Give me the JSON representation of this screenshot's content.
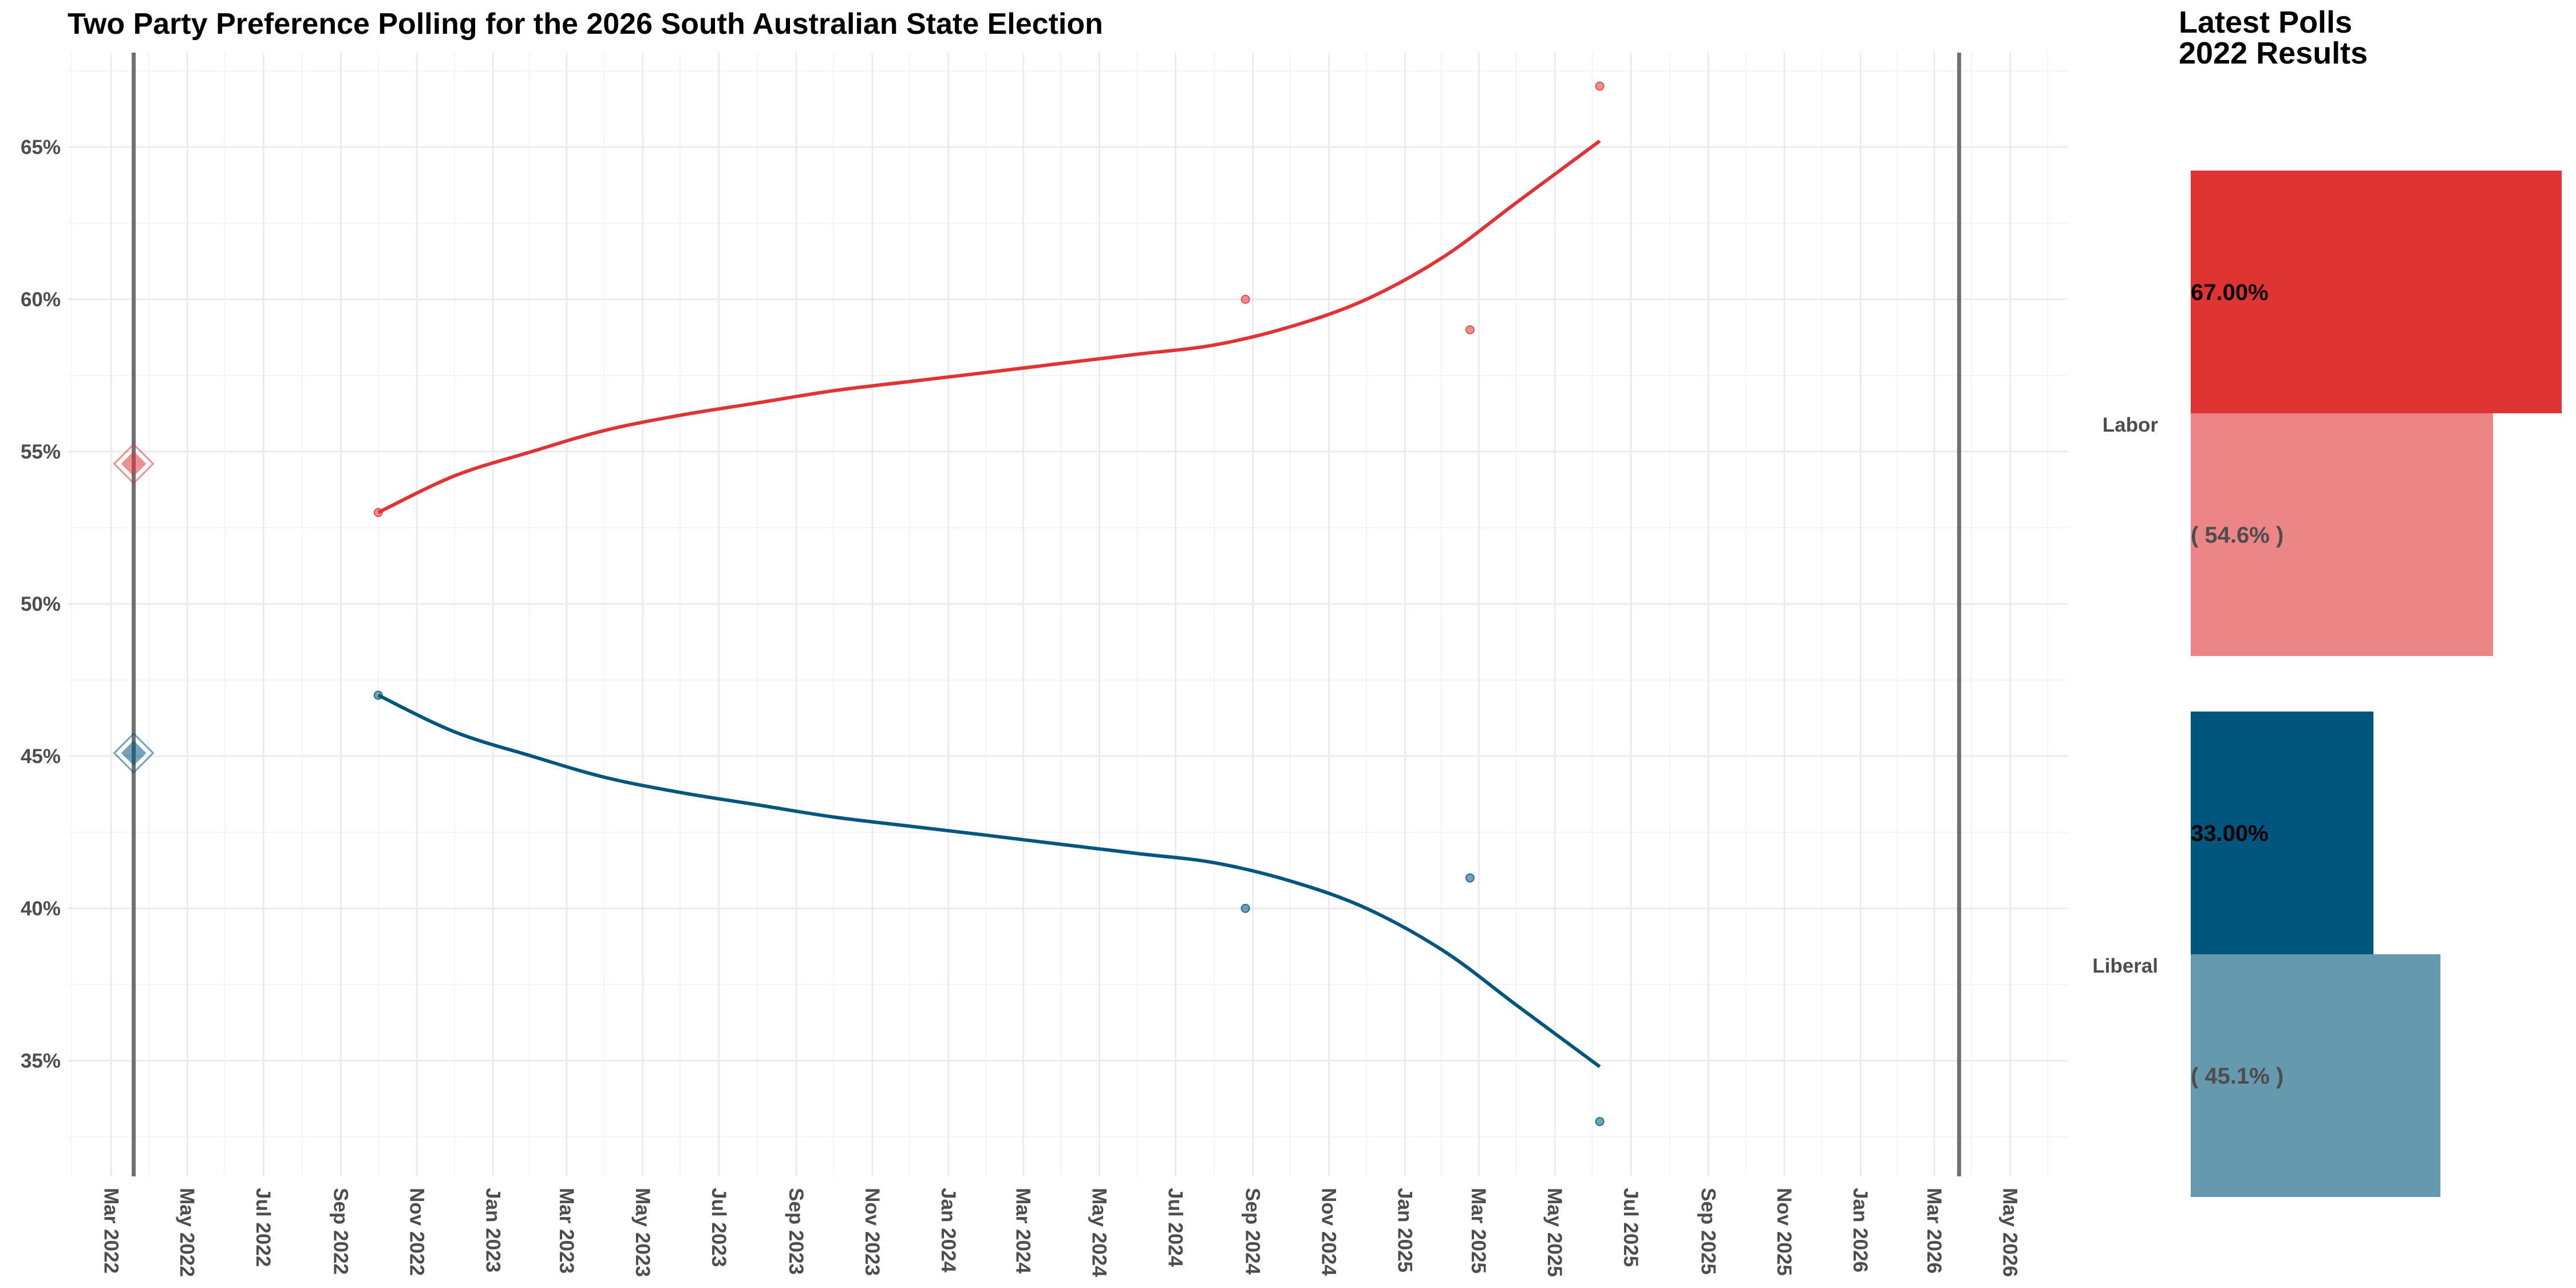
{
  "title": "Two Party Preference Polling for the 2026 South Australian State Election",
  "side_panel": {
    "title_line1": "Latest Polls",
    "title_line2": "2022 Results"
  },
  "colors": {
    "labor": "#E03434",
    "labor_light": "#EC8585",
    "liberal": "#00557F",
    "liberal_light": "#6699B0",
    "grid_major": "#EBEBEB",
    "grid_minor": "#F4F4F4",
    "vline": "#707070"
  },
  "chart_data": [
    {
      "type": "line",
      "title": "Two Party Preference Polling for the 2026 South Australian State Election",
      "xlabel": "",
      "ylabel": "",
      "x_axis_type": "date",
      "xlim": [
        "2022-01-25",
        "2026-06-16"
      ],
      "ylim": [
        31.2,
        68.1
      ],
      "y_ticks": [
        35,
        40,
        45,
        50,
        55,
        60,
        65
      ],
      "y_tick_labels": [
        "35%",
        "40%",
        "45%",
        "50%",
        "55%",
        "60%",
        "65%"
      ],
      "x_tick_labels": [
        "Mar 2022",
        "May 2022",
        "Jul 2022",
        "Sep 2022",
        "Nov 2022",
        "Jan 2023",
        "Mar 2023",
        "May 2023",
        "Jul 2023",
        "Sep 2023",
        "Nov 2023",
        "Jan 2024",
        "Mar 2024",
        "May 2024",
        "Jul 2024",
        "Sep 2024",
        "Nov 2024",
        "Jan 2025",
        "Mar 2025",
        "May 2025",
        "Jul 2025",
        "Sep 2025",
        "Nov 2025",
        "Jan 2026",
        "Mar 2026",
        "May 2026"
      ],
      "x_ticks": [
        "2022-03-01",
        "2022-05-01",
        "2022-07-01",
        "2022-09-01",
        "2022-11-01",
        "2023-01-01",
        "2023-03-01",
        "2023-05-01",
        "2023-07-01",
        "2023-09-01",
        "2023-11-01",
        "2024-01-01",
        "2024-03-01",
        "2024-05-01",
        "2024-07-01",
        "2024-09-01",
        "2024-11-01",
        "2025-01-01",
        "2025-03-01",
        "2025-05-01",
        "2025-07-01",
        "2025-09-01",
        "2025-11-01",
        "2026-01-01",
        "2026-03-01",
        "2026-05-01"
      ],
      "grid": true,
      "election_lines": [
        "2022-03-19",
        "2026-03-21"
      ],
      "series": [
        {
          "party": "Labor",
          "color_key": "labor",
          "polls": [
            {
              "x": "2022-10-01",
              "y": 53
            },
            {
              "x": "2024-08-26",
              "y": 60
            },
            {
              "x": "2025-02-22",
              "y": 59
            },
            {
              "x": "2025-06-06",
              "y": 67
            }
          ],
          "trend": [
            {
              "x": "2022-10-01",
              "y": 53.0
            },
            {
              "x": "2022-12-01",
              "y": 54.2
            },
            {
              "x": "2023-02-01",
              "y": 55.0
            },
            {
              "x": "2023-04-01",
              "y": 55.7
            },
            {
              "x": "2023-06-01",
              "y": 56.2
            },
            {
              "x": "2023-08-01",
              "y": 56.6
            },
            {
              "x": "2023-10-01",
              "y": 57.0
            },
            {
              "x": "2023-12-01",
              "y": 57.3
            },
            {
              "x": "2024-02-01",
              "y": 57.6
            },
            {
              "x": "2024-04-01",
              "y": 57.9
            },
            {
              "x": "2024-06-01",
              "y": 58.2
            },
            {
              "x": "2024-08-01",
              "y": 58.5
            },
            {
              "x": "2024-10-01",
              "y": 59.1
            },
            {
              "x": "2024-12-01",
              "y": 60.0
            },
            {
              "x": "2025-02-01",
              "y": 61.4
            },
            {
              "x": "2025-04-01",
              "y": 63.2
            },
            {
              "x": "2025-06-06",
              "y": 65.2
            }
          ],
          "result_2022": 54.6
        },
        {
          "party": "Liberal",
          "color_key": "liberal",
          "polls": [
            {
              "x": "2022-10-01",
              "y": 47
            },
            {
              "x": "2024-08-26",
              "y": 40
            },
            {
              "x": "2025-02-22",
              "y": 41
            },
            {
              "x": "2025-06-06",
              "y": 33
            }
          ],
          "trend": [
            {
              "x": "2022-10-01",
              "y": 47.0
            },
            {
              "x": "2022-12-01",
              "y": 45.8
            },
            {
              "x": "2023-02-01",
              "y": 45.0
            },
            {
              "x": "2023-04-01",
              "y": 44.3
            },
            {
              "x": "2023-06-01",
              "y": 43.8
            },
            {
              "x": "2023-08-01",
              "y": 43.4
            },
            {
              "x": "2023-10-01",
              "y": 43.0
            },
            {
              "x": "2023-12-01",
              "y": 42.7
            },
            {
              "x": "2024-02-01",
              "y": 42.4
            },
            {
              "x": "2024-04-01",
              "y": 42.1
            },
            {
              "x": "2024-06-01",
              "y": 41.8
            },
            {
              "x": "2024-08-01",
              "y": 41.5
            },
            {
              "x": "2024-10-01",
              "y": 40.9
            },
            {
              "x": "2024-12-01",
              "y": 40.0
            },
            {
              "x": "2025-02-01",
              "y": 38.6
            },
            {
              "x": "2025-04-01",
              "y": 36.8
            },
            {
              "x": "2025-06-06",
              "y": 34.8
            }
          ],
          "result_2022": 45.1
        }
      ]
    },
    {
      "type": "bar",
      "orientation": "horizontal",
      "title": "Latest Polls\n2022 Results",
      "xlim": [
        0,
        67
      ],
      "categories": [
        "Labor",
        "Liberal"
      ],
      "series": [
        {
          "group": "latest",
          "values": [
            67.0,
            33.0
          ],
          "labels": [
            "67.00%",
            "33.00%"
          ]
        },
        {
          "group": "2022",
          "values": [
            54.6,
            45.1
          ],
          "labels": [
            "( 54.6% )",
            "( 45.1% )"
          ]
        }
      ]
    }
  ]
}
